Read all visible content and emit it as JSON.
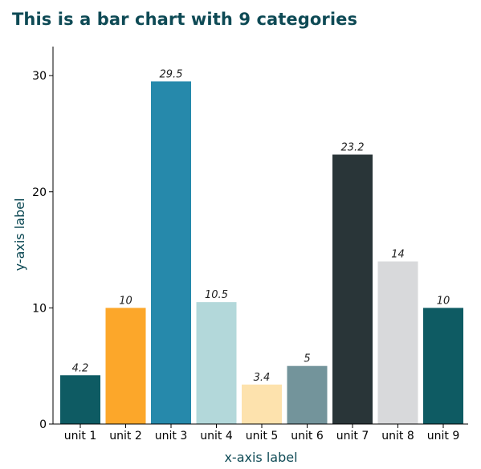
{
  "chart_data": {
    "type": "bar",
    "title": "This is a bar chart with 9 categories",
    "xlabel": "x-axis label",
    "ylabel": "y-axis label",
    "categories": [
      "unit 1",
      "unit 2",
      "unit 3",
      "unit 4",
      "unit 5",
      "unit 6",
      "unit 7",
      "unit 8",
      "unit 9"
    ],
    "values": [
      4.2,
      10,
      29.5,
      10.5,
      3.4,
      5,
      23.2,
      14,
      10
    ],
    "data_labels": [
      "4.2",
      "10",
      "29.5",
      "10.5",
      "3.4",
      "5",
      "23.2",
      "14",
      "10"
    ],
    "colors": [
      "#0e5b63",
      "#fca72a",
      "#2689ab",
      "#b3d8da",
      "#fde2ad",
      "#73949b",
      "#293538",
      "#d8d9db",
      "#0e5b63"
    ],
    "yticks": [
      0,
      10,
      20,
      30
    ],
    "ylim": [
      0,
      32.5
    ],
    "grid": false,
    "legend": "none"
  }
}
